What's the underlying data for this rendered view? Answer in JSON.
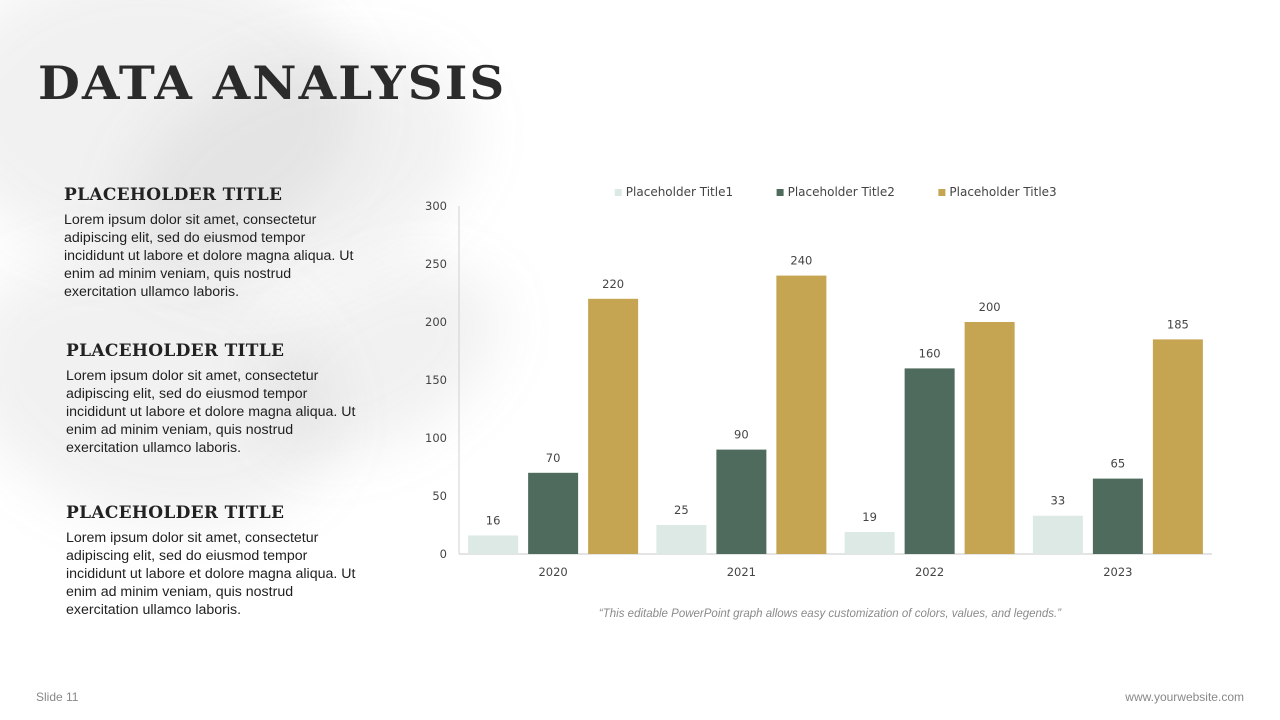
{
  "slide": {
    "title": "DATA ANALYSIS",
    "number_label": "Slide 11",
    "website": "www.yourwebsite.com",
    "caption": "“This editable PowerPoint graph allows easy customization of colors, values, and legends.”"
  },
  "blocks": [
    {
      "heading": "PLACEHOLDER TITLE",
      "body": "Lorem ipsum dolor sit amet, consectetur adipiscing elit, sed do eiusmod tempor incididunt ut labore et dolore magna aliqua. Ut enim ad minim veniam, quis nostrud exercitation ullamco laboris."
    },
    {
      "heading": "PLACEHOLDER TITLE",
      "body": "Lorem ipsum dolor sit amet, consectetur adipiscing elit, sed do eiusmod tempor incididunt ut labore et dolore magna aliqua. Ut enim ad minim veniam, quis nostrud exercitation ullamco laboris."
    },
    {
      "heading": "PLACEHOLDER TITLE",
      "body": "Lorem ipsum dolor sit amet, consectetur adipiscing elit, sed do eiusmod tempor incididunt ut labore et dolore magna aliqua. Ut enim ad minim veniam, quis nostrud exercitation ullamco laboris."
    }
  ],
  "chart_data": {
    "type": "bar",
    "categories": [
      "2020",
      "2021",
      "2022",
      "2023"
    ],
    "series": [
      {
        "name": "Placeholder Title1",
        "values": [
          16,
          25,
          19,
          33
        ],
        "color": "#dde9e5"
      },
      {
        "name": "Placeholder Title2",
        "values": [
          70,
          90,
          160,
          65
        ],
        "color": "#4f6b5e"
      },
      {
        "name": "Placeholder Title3",
        "values": [
          220,
          240,
          200,
          185
        ],
        "color": "#c5a552"
      }
    ],
    "ylim": [
      0,
      300
    ],
    "yticks": [
      0,
      50,
      100,
      150,
      200,
      250,
      300
    ],
    "data_labels": true,
    "grid": false,
    "legend_position": "top"
  }
}
